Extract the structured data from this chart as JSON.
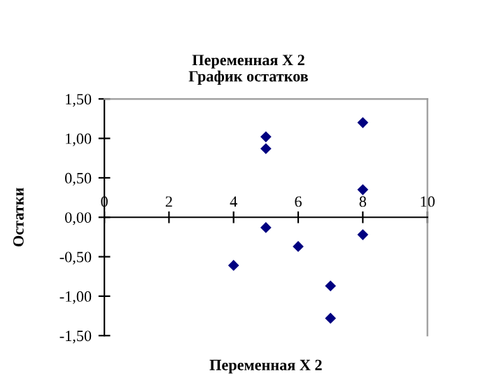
{
  "chart_data": {
    "type": "scatter",
    "title": "Переменная Х 2\nГрафик остатков",
    "xlabel": "Переменная Х 2",
    "ylabel": "Остатки",
    "x": [
      5,
      5,
      5,
      8,
      8,
      8,
      4,
      6,
      7,
      7
    ],
    "series": [
      {
        "color": "#000080",
        "values": [
          1.02,
          0.87,
          -0.13,
          1.2,
          0.35,
          -0.22,
          -0.61,
          -0.37,
          -0.87,
          -1.28
        ]
      }
    ],
    "marker": "diamond",
    "grid": false,
    "legend": false,
    "xlim": [
      0,
      10
    ],
    "xticks": [
      0,
      2,
      4,
      6,
      8,
      10
    ],
    "ylim": [
      -1.5,
      1.5
    ],
    "yticks": [
      {
        "value": -1.5,
        "label": "-1,50"
      },
      {
        "value": -1.0,
        "label": "-1,00"
      },
      {
        "value": -0.5,
        "label": "-0,50"
      },
      {
        "value": 0,
        "label": "0,00"
      },
      {
        "value": 0.5,
        "label": "0,50"
      },
      {
        "value": 1.0,
        "label": "1,00"
      },
      {
        "value": 1.5,
        "label": "1,50"
      }
    ]
  }
}
